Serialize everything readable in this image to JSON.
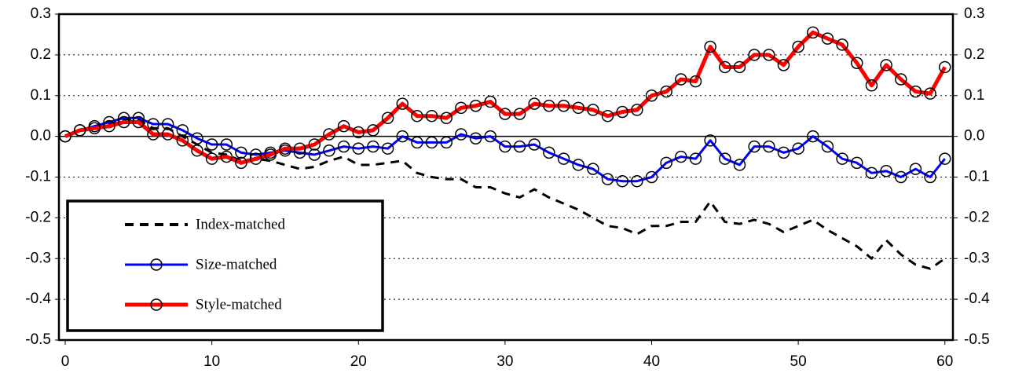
{
  "chart_data": {
    "type": "line",
    "x": [
      0,
      1,
      2,
      3,
      4,
      5,
      6,
      7,
      8,
      9,
      10,
      11,
      12,
      13,
      14,
      15,
      16,
      17,
      18,
      19,
      20,
      21,
      22,
      23,
      24,
      25,
      26,
      27,
      28,
      29,
      30,
      31,
      32,
      33,
      34,
      35,
      36,
      37,
      38,
      39,
      40,
      41,
      42,
      43,
      44,
      45,
      46,
      47,
      48,
      49,
      50,
      51,
      52,
      53,
      54,
      55,
      56,
      57,
      58,
      59,
      60
    ],
    "series": [
      {
        "name": "Index-matched",
        "color": "#000000",
        "dash": true,
        "marker": "none",
        "values": [
          0,
          0.015,
          0.025,
          0.03,
          0.04,
          0.04,
          0.02,
          0.02,
          0,
          -0.02,
          -0.04,
          -0.045,
          -0.06,
          -0.055,
          -0.06,
          -0.07,
          -0.08,
          -0.075,
          -0.06,
          -0.05,
          -0.07,
          -0.07,
          -0.065,
          -0.06,
          -0.09,
          -0.1,
          -0.105,
          -0.105,
          -0.125,
          -0.125,
          -0.14,
          -0.15,
          -0.13,
          -0.15,
          -0.165,
          -0.18,
          -0.2,
          -0.22,
          -0.225,
          -0.24,
          -0.22,
          -0.22,
          -0.21,
          -0.21,
          -0.16,
          -0.21,
          -0.215,
          -0.205,
          -0.215,
          -0.235,
          -0.22,
          -0.205,
          -0.23,
          -0.25,
          -0.27,
          -0.3,
          -0.255,
          -0.29,
          -0.315,
          -0.325,
          -0.3
        ]
      },
      {
        "name": "Size-matched",
        "color": "#0000ff",
        "dash": false,
        "marker": "circle",
        "values": [
          0,
          0.015,
          0.025,
          0.035,
          0.045,
          0.045,
          0.03,
          0.03,
          0.015,
          -0.005,
          -0.02,
          -0.02,
          -0.04,
          -0.045,
          -0.04,
          -0.035,
          -0.04,
          -0.045,
          -0.035,
          -0.025,
          -0.03,
          -0.025,
          -0.03,
          0,
          -0.015,
          -0.015,
          -0.015,
          0.005,
          -0.005,
          0,
          -0.025,
          -0.025,
          -0.02,
          -0.04,
          -0.055,
          -0.07,
          -0.08,
          -0.105,
          -0.11,
          -0.11,
          -0.1,
          -0.065,
          -0.05,
          -0.055,
          -0.01,
          -0.055,
          -0.07,
          -0.025,
          -0.025,
          -0.04,
          -0.03,
          0,
          -0.025,
          -0.055,
          -0.065,
          -0.09,
          -0.085,
          -0.1,
          -0.08,
          -0.1,
          -0.055
        ]
      },
      {
        "name": "Style-matched",
        "color": "#ff0000",
        "dash": false,
        "marker": "circle",
        "values": [
          0,
          0.015,
          0.02,
          0.025,
          0.035,
          0.035,
          0.005,
          0.005,
          -0.01,
          -0.035,
          -0.055,
          -0.05,
          -0.065,
          -0.055,
          -0.045,
          -0.03,
          -0.03,
          -0.02,
          0.005,
          0.025,
          0.01,
          0.015,
          0.045,
          0.08,
          0.05,
          0.05,
          0.045,
          0.07,
          0.075,
          0.085,
          0.055,
          0.055,
          0.08,
          0.075,
          0.075,
          0.07,
          0.065,
          0.05,
          0.06,
          0.065,
          0.1,
          0.11,
          0.14,
          0.135,
          0.22,
          0.17,
          0.17,
          0.2,
          0.2,
          0.175,
          0.22,
          0.255,
          0.24,
          0.225,
          0.18,
          0.125,
          0.175,
          0.14,
          0.11,
          0.105,
          0.17
        ]
      }
    ],
    "xlim": [
      -0.43,
      60.55
    ],
    "xticks": [
      0,
      10,
      20,
      30,
      40,
      50,
      60
    ],
    "ylim": [
      -0.5,
      0.3
    ],
    "yticks": [
      -0.5,
      -0.4,
      -0.3,
      -0.2,
      -0.1,
      {
        "value": 0,
        "label": "0.0"
      },
      0.1,
      0.2,
      0.3
    ],
    "y2lim": [
      -0.5,
      0.3
    ],
    "y2ticks": [
      -0.5,
      -0.4,
      -0.3,
      -0.2,
      -0.1,
      {
        "value": 0,
        "label": "0.0"
      },
      0.1,
      0.2,
      0.3
    ],
    "grid": true,
    "legend": "lower left"
  }
}
